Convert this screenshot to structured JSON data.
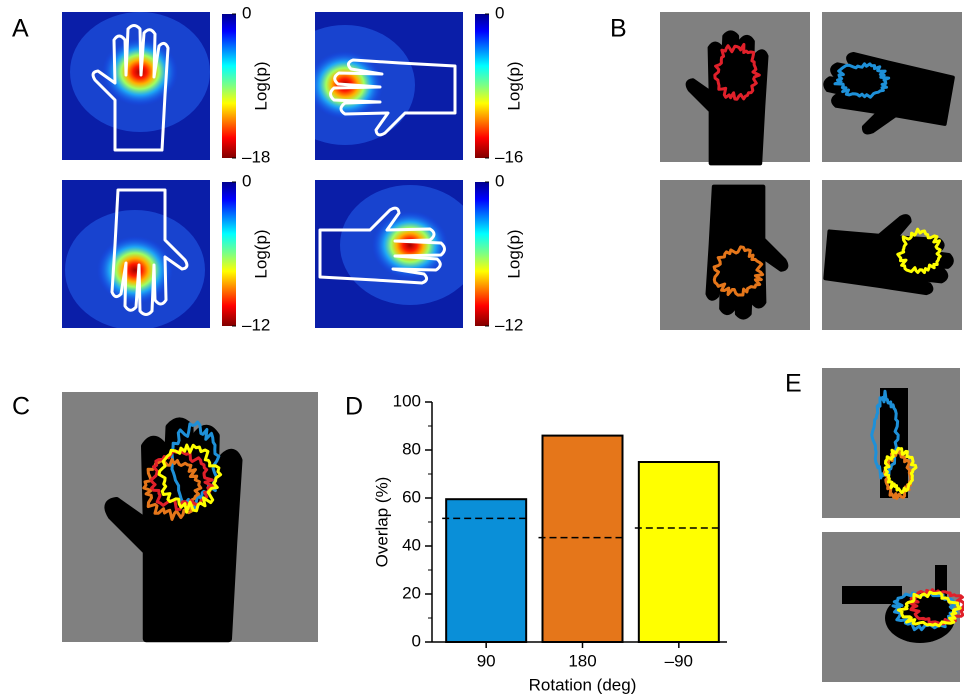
{
  "panels": [
    "A",
    "B",
    "C",
    "D",
    "E"
  ],
  "chart_data": [
    {
      "type": "heatmap",
      "colorbar_label": "Log(p)",
      "clim": [
        -18,
        0
      ],
      "cticks": [
        0,
        {
          "value": -18,
          "label": "–18"
        }
      ]
    },
    {
      "type": "heatmap",
      "colorbar_label": "Log(p)",
      "clim": [
        -16,
        0
      ],
      "cticks": [
        0,
        {
          "value": -16,
          "label": "–16"
        }
      ]
    },
    {
      "type": "heatmap",
      "colorbar_label": "Log(p)",
      "clim": [
        -12,
        0
      ],
      "cticks": [
        0,
        {
          "value": -12,
          "label": "–12"
        }
      ]
    },
    {
      "type": "heatmap",
      "colorbar_label": "Log(p)",
      "clim": [
        -12,
        0
      ],
      "cticks": [
        0,
        {
          "value": -12,
          "label": "–12"
        }
      ]
    },
    {
      "type": "bar",
      "xlabel": "Rotation (deg)",
      "ylabel": "Overlap (%)",
      "categories": [
        "90",
        "180",
        "–90"
      ],
      "values": [
        59.5,
        86,
        75
      ],
      "colors": [
        "#0a8fd8",
        "#e5761a",
        "#ffff00"
      ],
      "reference_values": [
        51.5,
        43.5,
        47.5
      ],
      "ylim": [
        0,
        100
      ],
      "yticks": [
        0,
        20,
        40,
        60,
        80,
        100
      ],
      "minor_yticks": [
        10,
        30,
        50,
        70,
        90
      ]
    }
  ]
}
